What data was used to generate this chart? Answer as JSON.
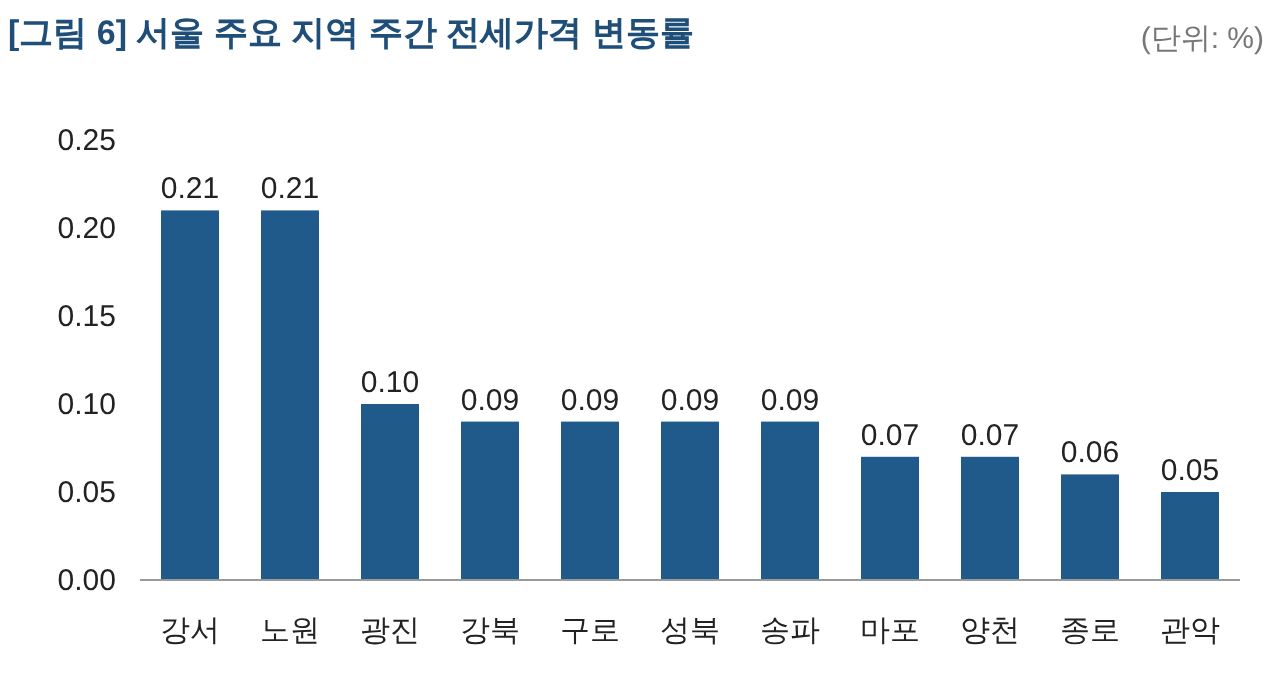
{
  "chart_data": {
    "type": "bar",
    "title": "[그림 6] 서울 주요 지역 주간 전세가격 변동률",
    "annotations": [
      "(단위: %)"
    ],
    "categories": [
      "강서",
      "노원",
      "광진",
      "강북",
      "구로",
      "성북",
      "송파",
      "마포",
      "양천",
      "종로",
      "관악"
    ],
    "values": [
      0.21,
      0.21,
      0.1,
      0.09,
      0.09,
      0.09,
      0.09,
      0.07,
      0.07,
      0.06,
      0.05
    ],
    "color": "#1f5a8a",
    "ylim": [
      0,
      0.25
    ],
    "yticks": [
      {
        "value": 0,
        "label": "0.00"
      },
      {
        "value": 0.05,
        "label": "0.05"
      },
      {
        "value": 0.1,
        "label": "0.10"
      },
      {
        "value": 0.15,
        "label": "0.15"
      },
      {
        "value": 0.2,
        "label": "0.20"
      },
      {
        "value": 0.25,
        "label": "0.25"
      }
    ],
    "value_labels": [
      "0.21",
      "0.21",
      "0.10",
      "0.09",
      "0.09",
      "0.09",
      "0.09",
      "0.07",
      "0.07",
      "0.06",
      "0.05"
    ]
  }
}
